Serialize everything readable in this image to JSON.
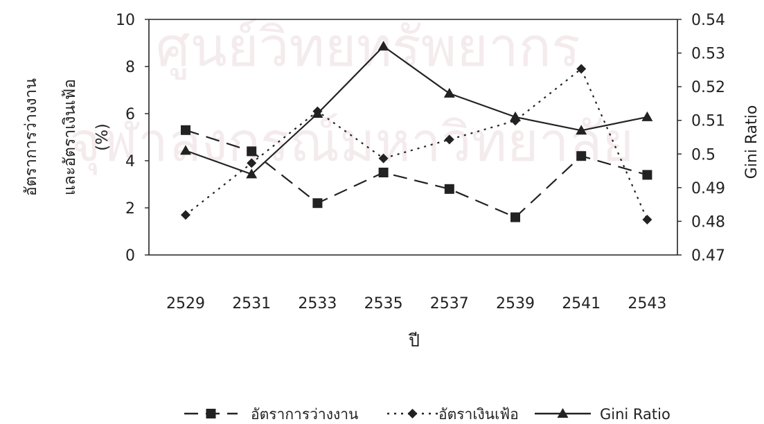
{
  "watermark": {
    "line1": "ศูนย์วิทยทรัพยากร",
    "line2": "จุฬาลงกรณ์มหาวิทยาลัย"
  },
  "chart_data": {
    "type": "line",
    "title": "",
    "xlabel": "ปี",
    "ylabel_left": [
      "อัตราการว่างงาน",
      "และอัตราเงินเฟ้อ",
      "(%)"
    ],
    "ylabel_right": "Gini Ratio",
    "categories": [
      "2529",
      "2531",
      "2533",
      "2535",
      "2537",
      "2539",
      "2541",
      "2543"
    ],
    "ylim_left": [
      0,
      10
    ],
    "yticks_left": [
      "0",
      "2",
      "4",
      "6",
      "8",
      "10"
    ],
    "ylim_right": [
      0.47,
      0.54
    ],
    "yticks_right": [
      "0.47",
      "0.48",
      "0.49",
      "0.5",
      "0.51",
      "0.52",
      "0.53",
      "0.54"
    ],
    "grid": false,
    "legend_position": "bottom",
    "series": [
      {
        "name": "อัตราการว่างงาน",
        "axis": "left",
        "marker": "square",
        "dash": "dashed",
        "color": "#222222",
        "values": [
          5.3,
          4.4,
          2.2,
          3.5,
          2.8,
          1.6,
          4.2,
          3.4
        ]
      },
      {
        "name": "อัตราเงินเฟ้อ",
        "axis": "left",
        "marker": "diamond",
        "dash": "dotted",
        "color": "#222222",
        "values": [
          1.7,
          3.9,
          6.1,
          4.1,
          4.9,
          5.7,
          7.9,
          1.5
        ]
      },
      {
        "name": "Gini Ratio",
        "axis": "right",
        "marker": "triangle",
        "dash": "solid",
        "color": "#222222",
        "values": [
          0.501,
          0.494,
          0.512,
          0.532,
          0.518,
          0.511,
          0.507,
          0.511
        ]
      }
    ]
  }
}
